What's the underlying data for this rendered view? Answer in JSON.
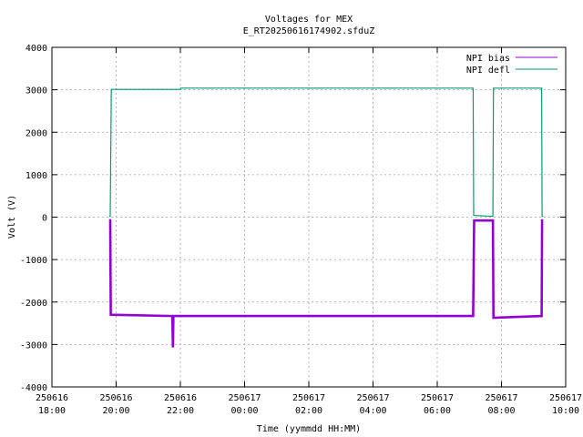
{
  "chart_data": {
    "type": "line",
    "title": "Voltages for MEX",
    "subtitle": "E_RT20250616174902.sfduZ",
    "xlabel": "Time (yymmdd HH:MM)",
    "ylabel": "Volt (V)",
    "ylim": [
      -4000,
      4000
    ],
    "yticks": [
      -4000,
      -3000,
      -2000,
      -1000,
      0,
      1000,
      2000,
      3000,
      4000
    ],
    "xlim": [
      "2025-06-16 18:00",
      "2025-06-17 10:00"
    ],
    "xticks": [
      {
        "date": "250616",
        "time": "18:00",
        "t": "2025-06-16 18:00"
      },
      {
        "date": "250616",
        "time": "20:00",
        "t": "2025-06-16 20:00"
      },
      {
        "date": "250616",
        "time": "22:00",
        "t": "2025-06-16 22:00"
      },
      {
        "date": "250617",
        "time": "00:00",
        "t": "2025-06-17 00:00"
      },
      {
        "date": "250617",
        "time": "02:00",
        "t": "2025-06-17 02:00"
      },
      {
        "date": "250617",
        "time": "04:00",
        "t": "2025-06-17 04:00"
      },
      {
        "date": "250617",
        "time": "06:00",
        "t": "2025-06-17 06:00"
      },
      {
        "date": "250617",
        "time": "08:00",
        "t": "2025-06-17 08:00"
      },
      {
        "date": "250617",
        "time": "10:00",
        "t": "2025-06-17 10:00"
      }
    ],
    "grid": true,
    "legend_position": "top-right",
    "series": [
      {
        "name": "NPI bias",
        "color": "#9400d3",
        "points": [
          [
            "2025-06-16 19:49",
            -50
          ],
          [
            "2025-06-16 19:50",
            -2300
          ],
          [
            "2025-06-16 21:45",
            -2330
          ],
          [
            "2025-06-16 21:46",
            -3070
          ],
          [
            "2025-06-16 21:47",
            -2330
          ],
          [
            "2025-06-17 07:07",
            -2330
          ],
          [
            "2025-06-17 07:09",
            -80
          ],
          [
            "2025-06-17 07:44",
            -80
          ],
          [
            "2025-06-17 07:45",
            -2370
          ],
          [
            "2025-06-17 09:15",
            -2330
          ],
          [
            "2025-06-17 09:16",
            -80
          ],
          [
            "2025-06-17 09:18",
            -80
          ]
        ]
      },
      {
        "name": "NPI defl",
        "color": "#009e73",
        "points": [
          [
            "2025-06-16 19:47",
            20
          ],
          [
            "2025-06-16 19:49",
            20
          ],
          [
            "2025-06-16 19:51",
            3010
          ],
          [
            "2025-06-16 22:00",
            3010
          ],
          [
            "2025-06-16 22:01",
            3040
          ],
          [
            "2025-06-17 07:07",
            3040
          ],
          [
            "2025-06-17 07:08",
            40
          ],
          [
            "2025-06-17 07:44",
            20
          ],
          [
            "2025-06-17 07:45",
            3040
          ],
          [
            "2025-06-17 09:15",
            3040
          ],
          [
            "2025-06-17 09:16",
            20
          ],
          [
            "2025-06-17 09:18",
            20
          ]
        ]
      }
    ]
  }
}
